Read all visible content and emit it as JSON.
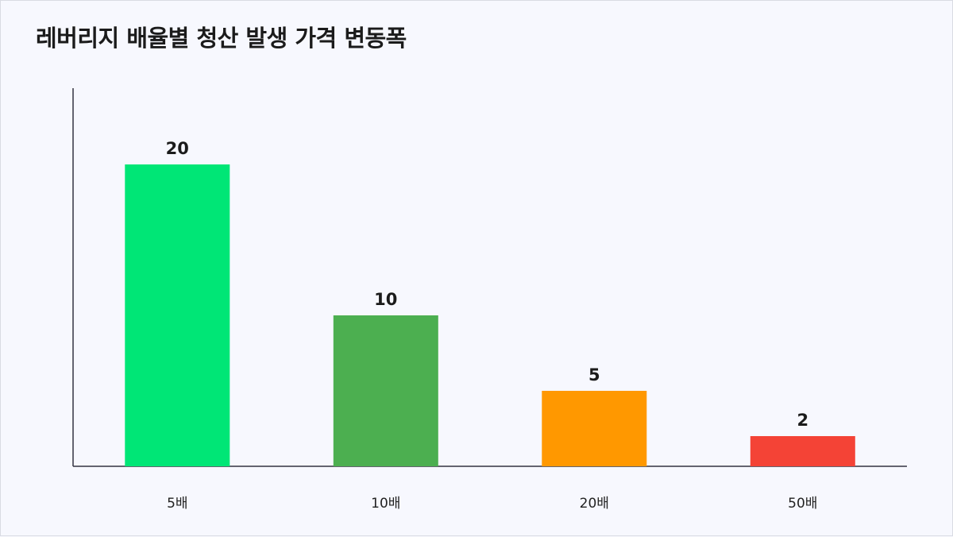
{
  "chart_data": {
    "type": "bar",
    "title": "레버리지 배율별 청산 발생 가격 변동폭",
    "categories": [
      "5배",
      "10배",
      "20배",
      "50배"
    ],
    "values": [
      20,
      10,
      5,
      2
    ],
    "colors": [
      "#00e676",
      "#4caf50",
      "#ff9800",
      "#f44336"
    ],
    "ylim": [
      0,
      25
    ],
    "grid": false,
    "legend": "none"
  }
}
